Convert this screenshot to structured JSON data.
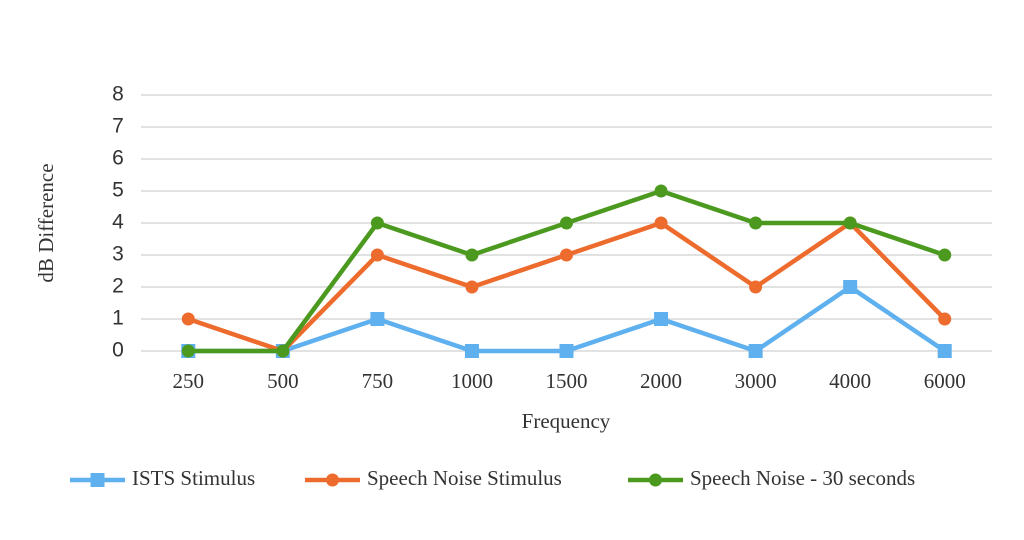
{
  "chart_data": {
    "type": "line",
    "x_label": "Frequency",
    "y_label": "dB Difference",
    "categories": [
      "250",
      "500",
      "750",
      "1000",
      "1500",
      "2000",
      "3000",
      "4000",
      "6000"
    ],
    "series": [
      {
        "name": "ISTS Stimulus",
        "color": "#5fb0ee",
        "marker": "square",
        "values": [
          0,
          0,
          1,
          0,
          0,
          1,
          0,
          2,
          0
        ]
      },
      {
        "name": "Speech Noise Stimulus",
        "color": "#ed6b2c",
        "marker": "circle",
        "values": [
          1,
          0,
          3,
          2,
          3,
          4,
          2,
          4,
          1
        ]
      },
      {
        "name": "Speech Noise - 30 seconds",
        "color": "#4b9a1f",
        "marker": "circle",
        "values": [
          0,
          0,
          4,
          3,
          4,
          5,
          4,
          4,
          3
        ]
      }
    ],
    "ylim": [
      0,
      8
    ],
    "yticks": [
      0,
      1,
      2,
      3,
      4,
      5,
      6,
      7,
      8
    ],
    "grid": true,
    "legend": "bottom"
  }
}
